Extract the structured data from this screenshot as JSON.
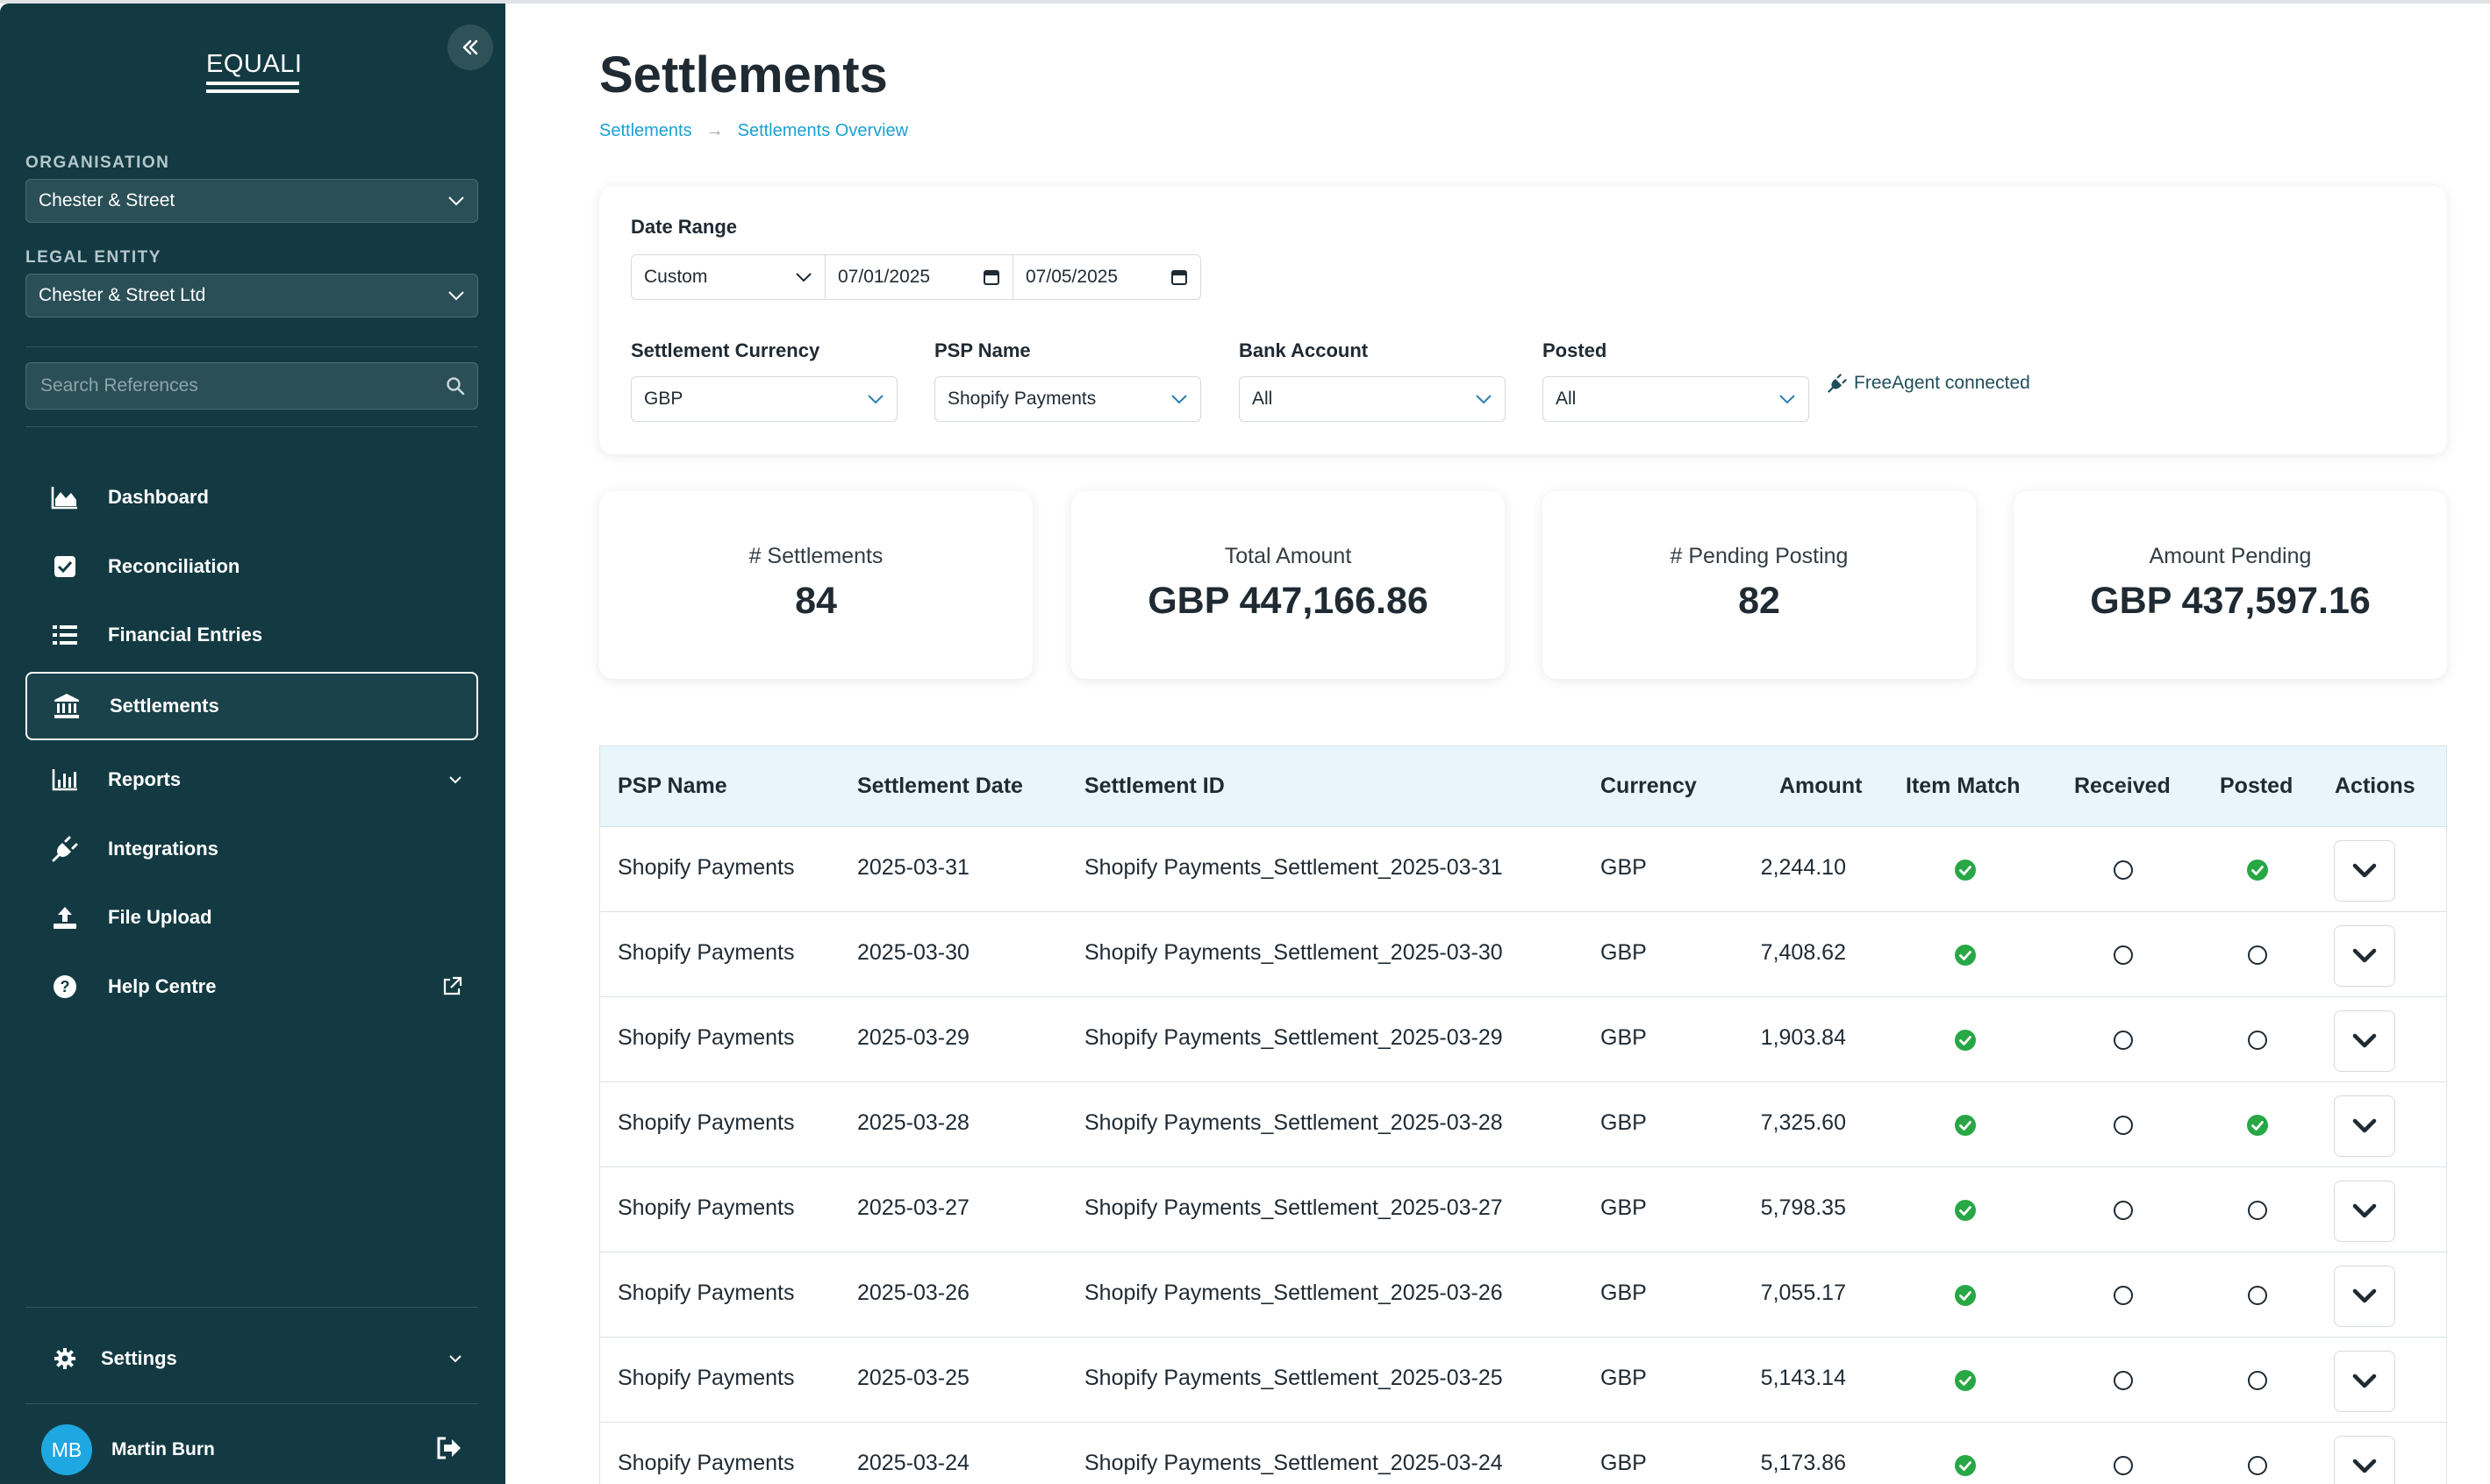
{
  "sidebar": {
    "logo": "EQUALI",
    "organisation_label": "ORGANISATION",
    "organisation_value": "Chester & Street",
    "legal_entity_label": "LEGAL ENTITY",
    "legal_entity_value": "Chester & Street Ltd",
    "search_placeholder": "Search References",
    "nav": [
      {
        "label": "Dashboard",
        "icon": "chart-area-icon"
      },
      {
        "label": "Reconciliation",
        "icon": "check-square-icon"
      },
      {
        "label": "Financial Entries",
        "icon": "list-icon"
      },
      {
        "label": "Settlements",
        "icon": "bank-icon",
        "active": true
      },
      {
        "label": "Reports",
        "icon": "bar-chart-icon",
        "trailing": "chevron-down-icon"
      },
      {
        "label": "Integrations",
        "icon": "plug-icon"
      },
      {
        "label": "File Upload",
        "icon": "upload-icon"
      },
      {
        "label": "Help Centre",
        "icon": "question-circle-icon",
        "trailing": "external-link-icon"
      }
    ],
    "settings_label": "Settings",
    "user_initials": "MB",
    "user_name": "Martin Burn"
  },
  "page": {
    "title": "Settlements",
    "breadcrumb": [
      "Settlements",
      "Settlements Overview"
    ],
    "breadcrumb_separator": "→"
  },
  "filters": {
    "date_range_label": "Date Range",
    "date_range_type": "Custom",
    "date_from": "07/01/2025",
    "date_to": "07/05/2025",
    "currency_label": "Settlement Currency",
    "currency_value": "GBP",
    "psp_label": "PSP Name",
    "psp_value": "Shopify Payments",
    "bank_label": "Bank Account",
    "bank_value": "All",
    "posted_label": "Posted",
    "posted_value": "All",
    "freeagent_status": "FreeAgent connected"
  },
  "stats": [
    {
      "label": "# Settlements",
      "value": "84"
    },
    {
      "label": "Total Amount",
      "value": "GBP 447,166.86"
    },
    {
      "label": "# Pending Posting",
      "value": "82"
    },
    {
      "label": "Amount Pending",
      "value": "GBP 437,597.16"
    }
  ],
  "table": {
    "headers": [
      "PSP Name",
      "Settlement Date",
      "Settlement ID",
      "Currency",
      "Amount",
      "Item Match",
      "Received",
      "Posted",
      "Actions"
    ],
    "rows": [
      {
        "psp": "Shopify Payments",
        "date": "2025-03-31",
        "id": "Shopify Payments_Settlement_2025-03-31",
        "currency": "GBP",
        "amount": "2,244.10",
        "item_match": true,
        "received": false,
        "posted": true
      },
      {
        "psp": "Shopify Payments",
        "date": "2025-03-30",
        "id": "Shopify Payments_Settlement_2025-03-30",
        "currency": "GBP",
        "amount": "7,408.62",
        "item_match": true,
        "received": false,
        "posted": false
      },
      {
        "psp": "Shopify Payments",
        "date": "2025-03-29",
        "id": "Shopify Payments_Settlement_2025-03-29",
        "currency": "GBP",
        "amount": "1,903.84",
        "item_match": true,
        "received": false,
        "posted": false
      },
      {
        "psp": "Shopify Payments",
        "date": "2025-03-28",
        "id": "Shopify Payments_Settlement_2025-03-28",
        "currency": "GBP",
        "amount": "7,325.60",
        "item_match": true,
        "received": false,
        "posted": true
      },
      {
        "psp": "Shopify Payments",
        "date": "2025-03-27",
        "id": "Shopify Payments_Settlement_2025-03-27",
        "currency": "GBP",
        "amount": "5,798.35",
        "item_match": true,
        "received": false,
        "posted": false
      },
      {
        "psp": "Shopify Payments",
        "date": "2025-03-26",
        "id": "Shopify Payments_Settlement_2025-03-26",
        "currency": "GBP",
        "amount": "7,055.17",
        "item_match": true,
        "received": false,
        "posted": false
      },
      {
        "psp": "Shopify Payments",
        "date": "2025-03-25",
        "id": "Shopify Payments_Settlement_2025-03-25",
        "currency": "GBP",
        "amount": "5,143.14",
        "item_match": true,
        "received": false,
        "posted": false
      },
      {
        "psp": "Shopify Payments",
        "date": "2025-03-24",
        "id": "Shopify Payments_Settlement_2025-03-24",
        "currency": "GBP",
        "amount": "5,173.86",
        "item_match": true,
        "received": false,
        "posted": false
      }
    ]
  },
  "colors": {
    "sidebar_bg": "#133a42",
    "accent": "#1aa1d4",
    "success": "#28a745",
    "table_header_bg": "#e8f6fb"
  }
}
